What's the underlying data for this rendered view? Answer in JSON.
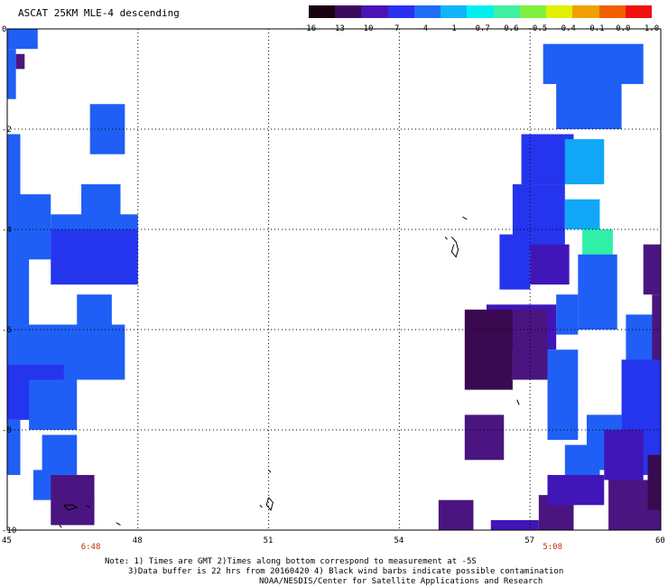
{
  "title": "ASCAT 25KM MLE-4 descending",
  "colorbar": {
    "labels": [
      "-16",
      "-13",
      "-10",
      "-7",
      "-4",
      "-1",
      "-0.7",
      "-0.6",
      "-0.5",
      "-0.4",
      "-0.1",
      "0.0",
      "1.0"
    ],
    "colors": [
      "#1a0010",
      "#3c0a5a",
      "#4a14b4",
      "#2a30f0",
      "#1e6ef8",
      "#10b4f8",
      "#00f0f0",
      "#40f0a0",
      "#80f040",
      "#e0f000",
      "#f0a000",
      "#f06000",
      "#f01010"
    ]
  },
  "map": {
    "lon_range": [
      45,
      60
    ],
    "lat_range": [
      -10,
      0
    ],
    "lat_ticks": [
      "0",
      "-2",
      "-4",
      "-6",
      "-8",
      "-10"
    ],
    "lon_ticks": [
      "45",
      "48",
      "51",
      "54",
      "57",
      "60"
    ],
    "time_labels": [
      {
        "text": "6:48",
        "lon": 46.9
      },
      {
        "text": "5:08",
        "lon": 57.5
      }
    ],
    "colors": {
      "blue": "#1f5ff5",
      "deepblue": "#2535ee",
      "indigo": "#4016b8",
      "purple": "#4a1580",
      "darkpurple": "#3a0a50",
      "cyan": "#10a8f6",
      "aqua": "#30f0a8"
    },
    "patches": [
      {
        "c": "blue",
        "lon": [
          45.0,
          45.7
        ],
        "lat": [
          -0.4,
          0.0
        ]
      },
      {
        "c": "blue",
        "lon": [
          45.0,
          45.2
        ],
        "lat": [
          -1.4,
          -0.4
        ]
      },
      {
        "c": "purple",
        "lon": [
          45.2,
          45.4
        ],
        "lat": [
          -0.8,
          -0.5
        ]
      },
      {
        "c": "blue",
        "lon": [
          46.9,
          47.7
        ],
        "lat": [
          -2.5,
          -1.5
        ]
      },
      {
        "c": "blue",
        "lon": [
          45.0,
          45.3
        ],
        "lat": [
          -3.8,
          -2.1
        ]
      },
      {
        "c": "blue",
        "lon": [
          45.0,
          46.0
        ],
        "lat": [
          -4.6,
          -3.3
        ]
      },
      {
        "c": "blue",
        "lon": [
          46.7,
          47.6
        ],
        "lat": [
          -4.0,
          -3.1
        ]
      },
      {
        "c": "blue",
        "lon": [
          46.0,
          48.0
        ],
        "lat": [
          -4.6,
          -3.7
        ]
      },
      {
        "c": "deepblue",
        "lon": [
          46.0,
          48.0
        ],
        "lat": [
          -5.1,
          -4.0
        ]
      },
      {
        "c": "blue",
        "lon": [
          45.0,
          45.5
        ],
        "lat": [
          -5.9,
          -4.5
        ]
      },
      {
        "c": "blue",
        "lon": [
          46.6,
          47.4
        ],
        "lat": [
          -6.0,
          -5.3
        ]
      },
      {
        "c": "blue",
        "lon": [
          45.0,
          47.7
        ],
        "lat": [
          -7.0,
          -5.9
        ]
      },
      {
        "c": "deepblue",
        "lon": [
          45.0,
          46.3
        ],
        "lat": [
          -7.8,
          -6.7
        ]
      },
      {
        "c": "blue",
        "lon": [
          45.5,
          46.6
        ],
        "lat": [
          -8.0,
          -7.0
        ]
      },
      {
        "c": "blue",
        "lon": [
          45.0,
          45.3
        ],
        "lat": [
          -8.9,
          -7.8
        ]
      },
      {
        "c": "blue",
        "lon": [
          45.8,
          46.6
        ],
        "lat": [
          -8.9,
          -8.1
        ]
      },
      {
        "c": "blue",
        "lon": [
          45.6,
          46.2
        ],
        "lat": [
          -9.4,
          -8.8
        ]
      },
      {
        "c": "purple",
        "lon": [
          46.0,
          47.0
        ],
        "lat": [
          -9.9,
          -8.9
        ]
      },
      {
        "c": "purple",
        "lon": [
          46.7,
          47.0
        ],
        "lat": [
          -9.6,
          -9.3
        ]
      },
      {
        "c": "blue",
        "lon": [
          57.3,
          59.6
        ],
        "lat": [
          -1.1,
          -0.3
        ]
      },
      {
        "c": "blue",
        "lon": [
          57.6,
          59.1
        ],
        "lat": [
          -2.0,
          -1.0
        ]
      },
      {
        "c": "deepblue",
        "lon": [
          56.8,
          58.0
        ],
        "lat": [
          -3.1,
          -2.1
        ]
      },
      {
        "c": "cyan",
        "lon": [
          57.8,
          58.7
        ],
        "lat": [
          -3.1,
          -2.2
        ]
      },
      {
        "c": "deepblue",
        "lon": [
          56.6,
          57.8
        ],
        "lat": [
          -4.4,
          -3.1
        ]
      },
      {
        "c": "cyan",
        "lon": [
          57.8,
          58.6
        ],
        "lat": [
          -4.0,
          -3.4
        ]
      },
      {
        "c": "aqua",
        "lon": [
          58.2,
          58.9
        ],
        "lat": [
          -4.7,
          -4.0
        ]
      },
      {
        "c": "deepblue",
        "lon": [
          56.3,
          57.0
        ],
        "lat": [
          -5.2,
          -4.1
        ]
      },
      {
        "c": "indigo",
        "lon": [
          57.0,
          57.9
        ],
        "lat": [
          -5.1,
          -4.3
        ]
      },
      {
        "c": "blue",
        "lon": [
          57.6,
          58.1
        ],
        "lat": [
          -6.1,
          -5.3
        ]
      },
      {
        "c": "blue",
        "lon": [
          58.1,
          59.0
        ],
        "lat": [
          -6.0,
          -4.5
        ]
      },
      {
        "c": "blue",
        "lon": [
          59.2,
          60.0
        ],
        "lat": [
          -6.8,
          -5.7
        ]
      },
      {
        "c": "purple",
        "lon": [
          59.6,
          60.0
        ],
        "lat": [
          -5.3,
          -4.3
        ]
      },
      {
        "c": "purple",
        "lon": [
          59.8,
          60.0
        ],
        "lat": [
          -8.4,
          -5.3
        ]
      },
      {
        "c": "indigo",
        "lon": [
          56.0,
          57.6
        ],
        "lat": [
          -6.4,
          -5.5
        ]
      },
      {
        "c": "darkpurple",
        "lon": [
          55.5,
          56.6
        ],
        "lat": [
          -7.2,
          -5.6
        ]
      },
      {
        "c": "purple",
        "lon": [
          56.6,
          57.4
        ],
        "lat": [
          -7.0,
          -5.6
        ]
      },
      {
        "c": "blue",
        "lon": [
          57.4,
          58.1
        ],
        "lat": [
          -8.2,
          -6.4
        ]
      },
      {
        "c": "purple",
        "lon": [
          55.5,
          56.4
        ],
        "lat": [
          -8.6,
          -7.7
        ]
      },
      {
        "c": "blue",
        "lon": [
          58.3,
          59.1
        ],
        "lat": [
          -8.8,
          -7.7
        ]
      },
      {
        "c": "deepblue",
        "lon": [
          59.1,
          60.0
        ],
        "lat": [
          -8.9,
          -6.6
        ]
      },
      {
        "c": "indigo",
        "lon": [
          58.7,
          59.6
        ],
        "lat": [
          -9.0,
          -8.0
        ]
      },
      {
        "c": "purple",
        "lon": [
          58.8,
          60.0
        ],
        "lat": [
          -10.0,
          -9.0
        ]
      },
      {
        "c": "darkpurple",
        "lon": [
          59.7,
          60.0
        ],
        "lat": [
          -9.6,
          -8.5
        ]
      },
      {
        "c": "blue",
        "lon": [
          57.8,
          58.6
        ],
        "lat": [
          -9.3,
          -8.3
        ]
      },
      {
        "c": "purple",
        "lon": [
          57.2,
          58.0
        ],
        "lat": [
          -10.0,
          -9.3
        ]
      },
      {
        "c": "indigo",
        "lon": [
          57.4,
          58.7
        ],
        "lat": [
          -9.5,
          -8.9
        ]
      },
      {
        "c": "purple",
        "lon": [
          54.9,
          55.7
        ],
        "lat": [
          -10.0,
          -9.4
        ]
      },
      {
        "c": "indigo",
        "lon": [
          56.1,
          57.2
        ],
        "lat": [
          -10.0,
          -9.8
        ]
      },
      {
        "c": "purple",
        "lon": [
          59.5,
          60.0
        ],
        "lat": [
          -10.0,
          -9.6
        ]
      }
    ]
  },
  "notes": {
    "line1": "Note: 1) Times are GMT 2)Times along bottom correspond to measurement at -5S",
    "line2": "3)Data buffer is 22 hrs from 20160420 4) Black wind barbs indicate possible contamination",
    "line3": "NOAA/NESDIS/Center for Satellite Applications and Research"
  }
}
